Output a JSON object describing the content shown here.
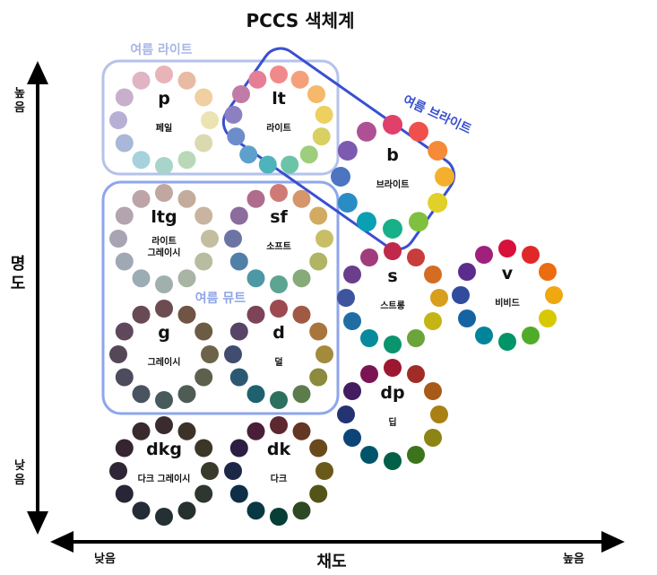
{
  "title": "PCCS  색체계",
  "axes": {
    "y_label": "명도",
    "y_high": "높음",
    "y_low": "낮음",
    "x_label": "채도",
    "x_low": "낮음",
    "x_high": "높음"
  },
  "groups": {
    "summer_light": "여름 라이트",
    "summer_mute": "여름 뮤트",
    "summer_bright": "여름 브라이트"
  },
  "colors": {
    "axis": "#000000",
    "summer_light_border": "#b5c2ea",
    "summer_mute_border": "#8ea6ec",
    "summer_bright_border": "#3a4fd0"
  },
  "tones": [
    {
      "code": "p",
      "name": "페일",
      "ring": [
        "#e8b4b8",
        "#e8bba4",
        "#f0cfa0",
        "#ebe3b2",
        "#dbd9b0",
        "#b8d8b8",
        "#a8d4cc",
        "#a6d2dc",
        "#a8b8d6",
        "#b8b0d4",
        "#c8b0cc",
        "#e0b4c4"
      ]
    },
    {
      "code": "lt",
      "name": "라이트",
      "ring": [
        "#f08a8a",
        "#f4a07a",
        "#f6b86a",
        "#eed060",
        "#d8d060",
        "#9cce7c",
        "#6cc4a8",
        "#4eb4bc",
        "#5ea0cc",
        "#6c8ccc",
        "#8c80c2",
        "#c07ca6",
        "#e67e96"
      ]
    },
    {
      "code": "b",
      "name": "브라이트",
      "ring": [
        "#e0406a",
        "#f0504c",
        "#f58a38",
        "#f4b02c",
        "#e0d028",
        "#80c040",
        "#18b088",
        "#0aa0b4",
        "#2a8cc4",
        "#4c74c0",
        "#7c5ab0",
        "#b05094"
      ]
    },
    {
      "code": "ltg",
      "name": "라이트\n그레이시",
      "ring": [
        "#c0a8a0",
        "#c4ac9c",
        "#c8b4a0",
        "#c4bea0",
        "#b8bca0",
        "#a8b4a4",
        "#a0b0ac",
        "#9cacb4",
        "#a0a8b4",
        "#a8a4b4",
        "#b4a4b0",
        "#bca4a8"
      ]
    },
    {
      "code": "sf",
      "name": "소프트",
      "ring": [
        "#d07a78",
        "#d4966a",
        "#d2aa62",
        "#c8be66",
        "#b0b464",
        "#86aa78",
        "#5ea492",
        "#4c98a4",
        "#5080a8",
        "#6c74a4",
        "#8c6c9c",
        "#b06c8c"
      ]
    },
    {
      "code": "s",
      "name": "스트롱",
      "ring": [
        "#c0284c",
        "#c83c3c",
        "#d46c24",
        "#d89e1c",
        "#c4b414",
        "#6aa43a",
        "#0a9470",
        "#068a9c",
        "#1e6ea4",
        "#3e549c",
        "#6a3e8c",
        "#a03c7c"
      ]
    },
    {
      "code": "v",
      "name": "비비드",
      "ring": [
        "#d8103c",
        "#e02828",
        "#ec6c10",
        "#f0a810",
        "#d8c800",
        "#50ac28",
        "#009468",
        "#00849c",
        "#1464a4",
        "#304c9c",
        "#5c2c8c",
        "#a0207c"
      ]
    },
    {
      "code": "g",
      "name": "그레이시",
      "ring": [
        "#6c4c50",
        "#705444",
        "#6c5c44",
        "#6c6448",
        "#5c604c",
        "#4e5c54",
        "#485a5c",
        "#485460",
        "#4c4c5c",
        "#544858",
        "#60485c",
        "#684a54"
      ]
    },
    {
      "code": "d",
      "name": "덜",
      "ring": [
        "#9c4a50",
        "#a05a44",
        "#a8763c",
        "#a48a3c",
        "#8c8a3c",
        "#5c7c4c",
        "#2e7060",
        "#1e6270",
        "#2c5874",
        "#404c70",
        "#584466",
        "#7c4458"
      ]
    },
    {
      "code": "dp",
      "name": "딥",
      "ring": [
        "#9c1830",
        "#a02c28",
        "#a85a18",
        "#a88014",
        "#8c8414",
        "#3c741c",
        "#006048",
        "#00546a",
        "#0c4478",
        "#243472",
        "#441c60",
        "#7c1454"
      ]
    },
    {
      "code": "dkg",
      "name": "다크 그레이시",
      "ring": [
        "#3a2c2e",
        "#3c3228",
        "#3c3628",
        "#3a3a2c",
        "#2e3630",
        "#26302e",
        "#243034",
        "#242c38",
        "#282636",
        "#2e2634",
        "#362430",
        "#3a2a2e"
      ]
    },
    {
      "code": "dk",
      "name": "다크",
      "ring": [
        "#5e2830",
        "#643624",
        "#6a4a1c",
        "#6a5a1a",
        "#545418",
        "#2e4a24",
        "#083e36",
        "#083844",
        "#0e2e48",
        "#1c2846",
        "#2c1e42",
        "#4a1e38"
      ]
    }
  ]
}
